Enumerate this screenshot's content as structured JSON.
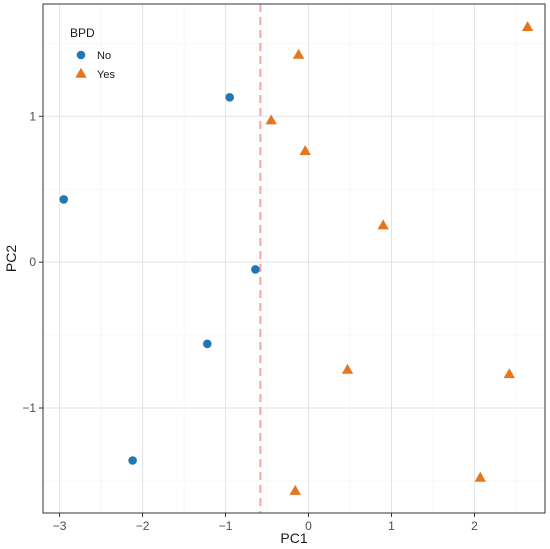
{
  "chart_data": {
    "type": "scatter",
    "title": "",
    "xlabel": "PC1",
    "ylabel": "PC2",
    "xlim": [
      -3.2,
      2.85
    ],
    "ylim": [
      -1.72,
      1.77
    ],
    "x_ticks": [
      -3,
      -2,
      -1,
      0,
      1,
      2
    ],
    "y_ticks": [
      -1,
      0,
      1
    ],
    "x_tick_labels": [
      "−3",
      "−2",
      "−1",
      "0",
      "1",
      "2"
    ],
    "y_tick_labels": [
      "−1",
      "0",
      "1"
    ],
    "grid": true,
    "legend": {
      "title": "BPD",
      "position": "top-left"
    },
    "reference_line": {
      "x": -0.58,
      "style": "dashed",
      "color": "#f4a6a6"
    },
    "series": [
      {
        "name": "No",
        "marker": "circle",
        "color": "#1f77b4",
        "points": [
          {
            "x": -2.95,
            "y": 0.43
          },
          {
            "x": -0.95,
            "y": 1.13
          },
          {
            "x": -0.64,
            "y": -0.05
          },
          {
            "x": -1.22,
            "y": -0.56
          },
          {
            "x": -2.12,
            "y": -1.36
          }
        ]
      },
      {
        "name": "Yes",
        "marker": "triangle",
        "color": "#e6761d",
        "points": [
          {
            "x": 2.64,
            "y": 1.61
          },
          {
            "x": -0.12,
            "y": 1.42
          },
          {
            "x": -0.45,
            "y": 0.97
          },
          {
            "x": -0.04,
            "y": 0.76
          },
          {
            "x": 0.9,
            "y": 0.25
          },
          {
            "x": 0.47,
            "y": -0.74
          },
          {
            "x": 2.42,
            "y": -0.77
          },
          {
            "x": 2.07,
            "y": -1.48
          },
          {
            "x": -0.16,
            "y": -1.57
          }
        ]
      }
    ]
  }
}
